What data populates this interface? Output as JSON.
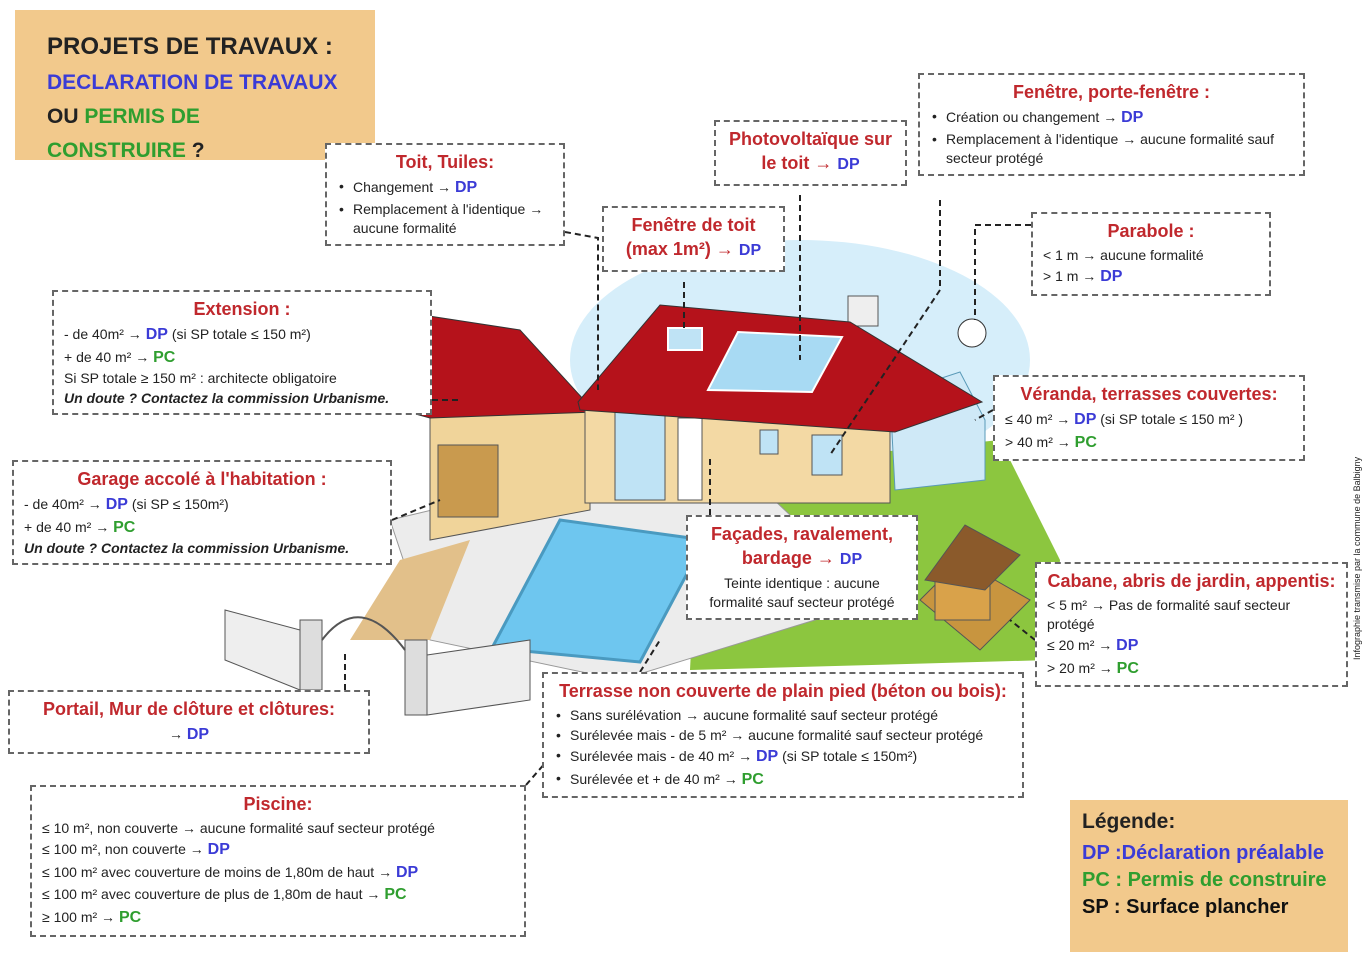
{
  "header": {
    "title": "PROJETS DE TRAVAUX :",
    "subtitle": "DECLARATION DE TRAVAUX",
    "question": [
      "OU",
      "PERMIS DE CONSTRUIRE",
      "?"
    ]
  },
  "codes": {
    "DP": "#3b3bd6",
    "PC": "#2f9e2f"
  },
  "boxes": [
    {
      "title": [
        "Toit, Tuiles:"
      ],
      "bulleted": true,
      "lines": [
        [
          "Changement →",
          "DP"
        ],
        [
          "Remplacement à l'identique → aucune formalité"
        ]
      ]
    },
    {
      "title": [
        "Photovoltaïque sur le toit →",
        "DP"
      ],
      "lines": []
    },
    {
      "title": [
        "Fenêtre de toit (max 1m²) →",
        "DP"
      ],
      "lines": []
    },
    {
      "title": [
        "Fenêtre, porte-fenêtre :"
      ],
      "bulleted": true,
      "lines": [
        [
          "Création ou changement →",
          "DP"
        ],
        [
          "Remplacement à l'identique → aucune formalité sauf secteur protégé"
        ]
      ]
    },
    {
      "title": [
        "Parabole :"
      ],
      "lines": [
        [
          "< 1 m → aucune formalité"
        ],
        [
          "> 1 m →",
          "DP"
        ]
      ]
    },
    {
      "title": [
        "Extension :"
      ],
      "lines": [
        [
          "- de 40m² →",
          "DP",
          "(si SP totale ≤ 150 m²)"
        ],
        [
          "+ de 40 m² →",
          "PC"
        ],
        [
          "Si SP totale ≥ 150 m² : architecte obligatoire"
        ]
      ],
      "note": "Un doute ? Contactez la commission Urbanisme."
    },
    {
      "title": [
        "Véranda, terrasses couvertes:"
      ],
      "lines": [
        [
          "≤ 40 m² →",
          "DP",
          "(si SP totale ≤ 150 m² )"
        ],
        [
          "> 40 m² →",
          "PC"
        ]
      ]
    },
    {
      "title": [
        "Garage accolé à l'habitation :"
      ],
      "lines": [
        [
          "- de 40m² →",
          "DP",
          "(si SP ≤ 150m²)"
        ],
        [
          "+ de 40 m² →",
          "PC"
        ]
      ],
      "note": "Un doute ? Contactez la commission Urbanisme."
    },
    {
      "title": [
        "Façades, ravalement, bardage →",
        "DP"
      ],
      "lines": [
        [
          "Teinte identique : aucune formalité sauf secteur protégé"
        ]
      ]
    },
    {
      "title": [
        "Cabane, abris de jardin, appentis:"
      ],
      "lines": [
        [
          "< 5 m² → Pas de formalité sauf secteur protégé"
        ],
        [
          "≤ 20 m² →",
          "DP"
        ],
        [
          "> 20 m² →",
          "PC"
        ]
      ]
    },
    {
      "title": [
        "Portail, Mur de clôture et clôtures:"
      ],
      "lines": [
        [
          "→",
          "DP"
        ]
      ]
    },
    {
      "title": [
        "Terrasse non couverte de plain pied (béton ou bois):"
      ],
      "bulleted": true,
      "lines": [
        [
          "Sans surélévation → aucune formalité sauf secteur protégé"
        ],
        [
          "Surélevée mais - de 5 m² → aucune formalité sauf secteur protégé"
        ],
        [
          "Surélevée mais - de 40 m² →",
          "DP",
          "(si SP totale ≤ 150m²)"
        ],
        [
          "Surélevée et + de 40 m² →",
          "PC"
        ]
      ]
    },
    {
      "title": [
        "Piscine:"
      ],
      "lines": [
        [
          "≤ 10 m², non couverte → aucune formalité sauf secteur protégé"
        ],
        [
          "≤ 100 m², non couverte →",
          "DP"
        ],
        [
          "≤ 100 m² avec couverture de moins de 1,80m de haut →",
          "DP"
        ],
        [
          "≤ 100 m² avec couverture de plus de 1,80m de haut →",
          "PC"
        ],
        [
          "≥ 100 m² →",
          "PC"
        ]
      ]
    }
  ],
  "legend": {
    "title": "Légende:",
    "items": [
      {
        "code": "DP",
        "text": ":Déclaration préalable",
        "color": "#3b3bd6"
      },
      {
        "code": "PC",
        "text": ": Permis de construire",
        "color": "#2f9e2f"
      },
      {
        "code": "SP",
        "text": ": Surface plancher",
        "color": "#111111"
      }
    ]
  },
  "credit": "Infographie transmise par la commune de Balbigny"
}
